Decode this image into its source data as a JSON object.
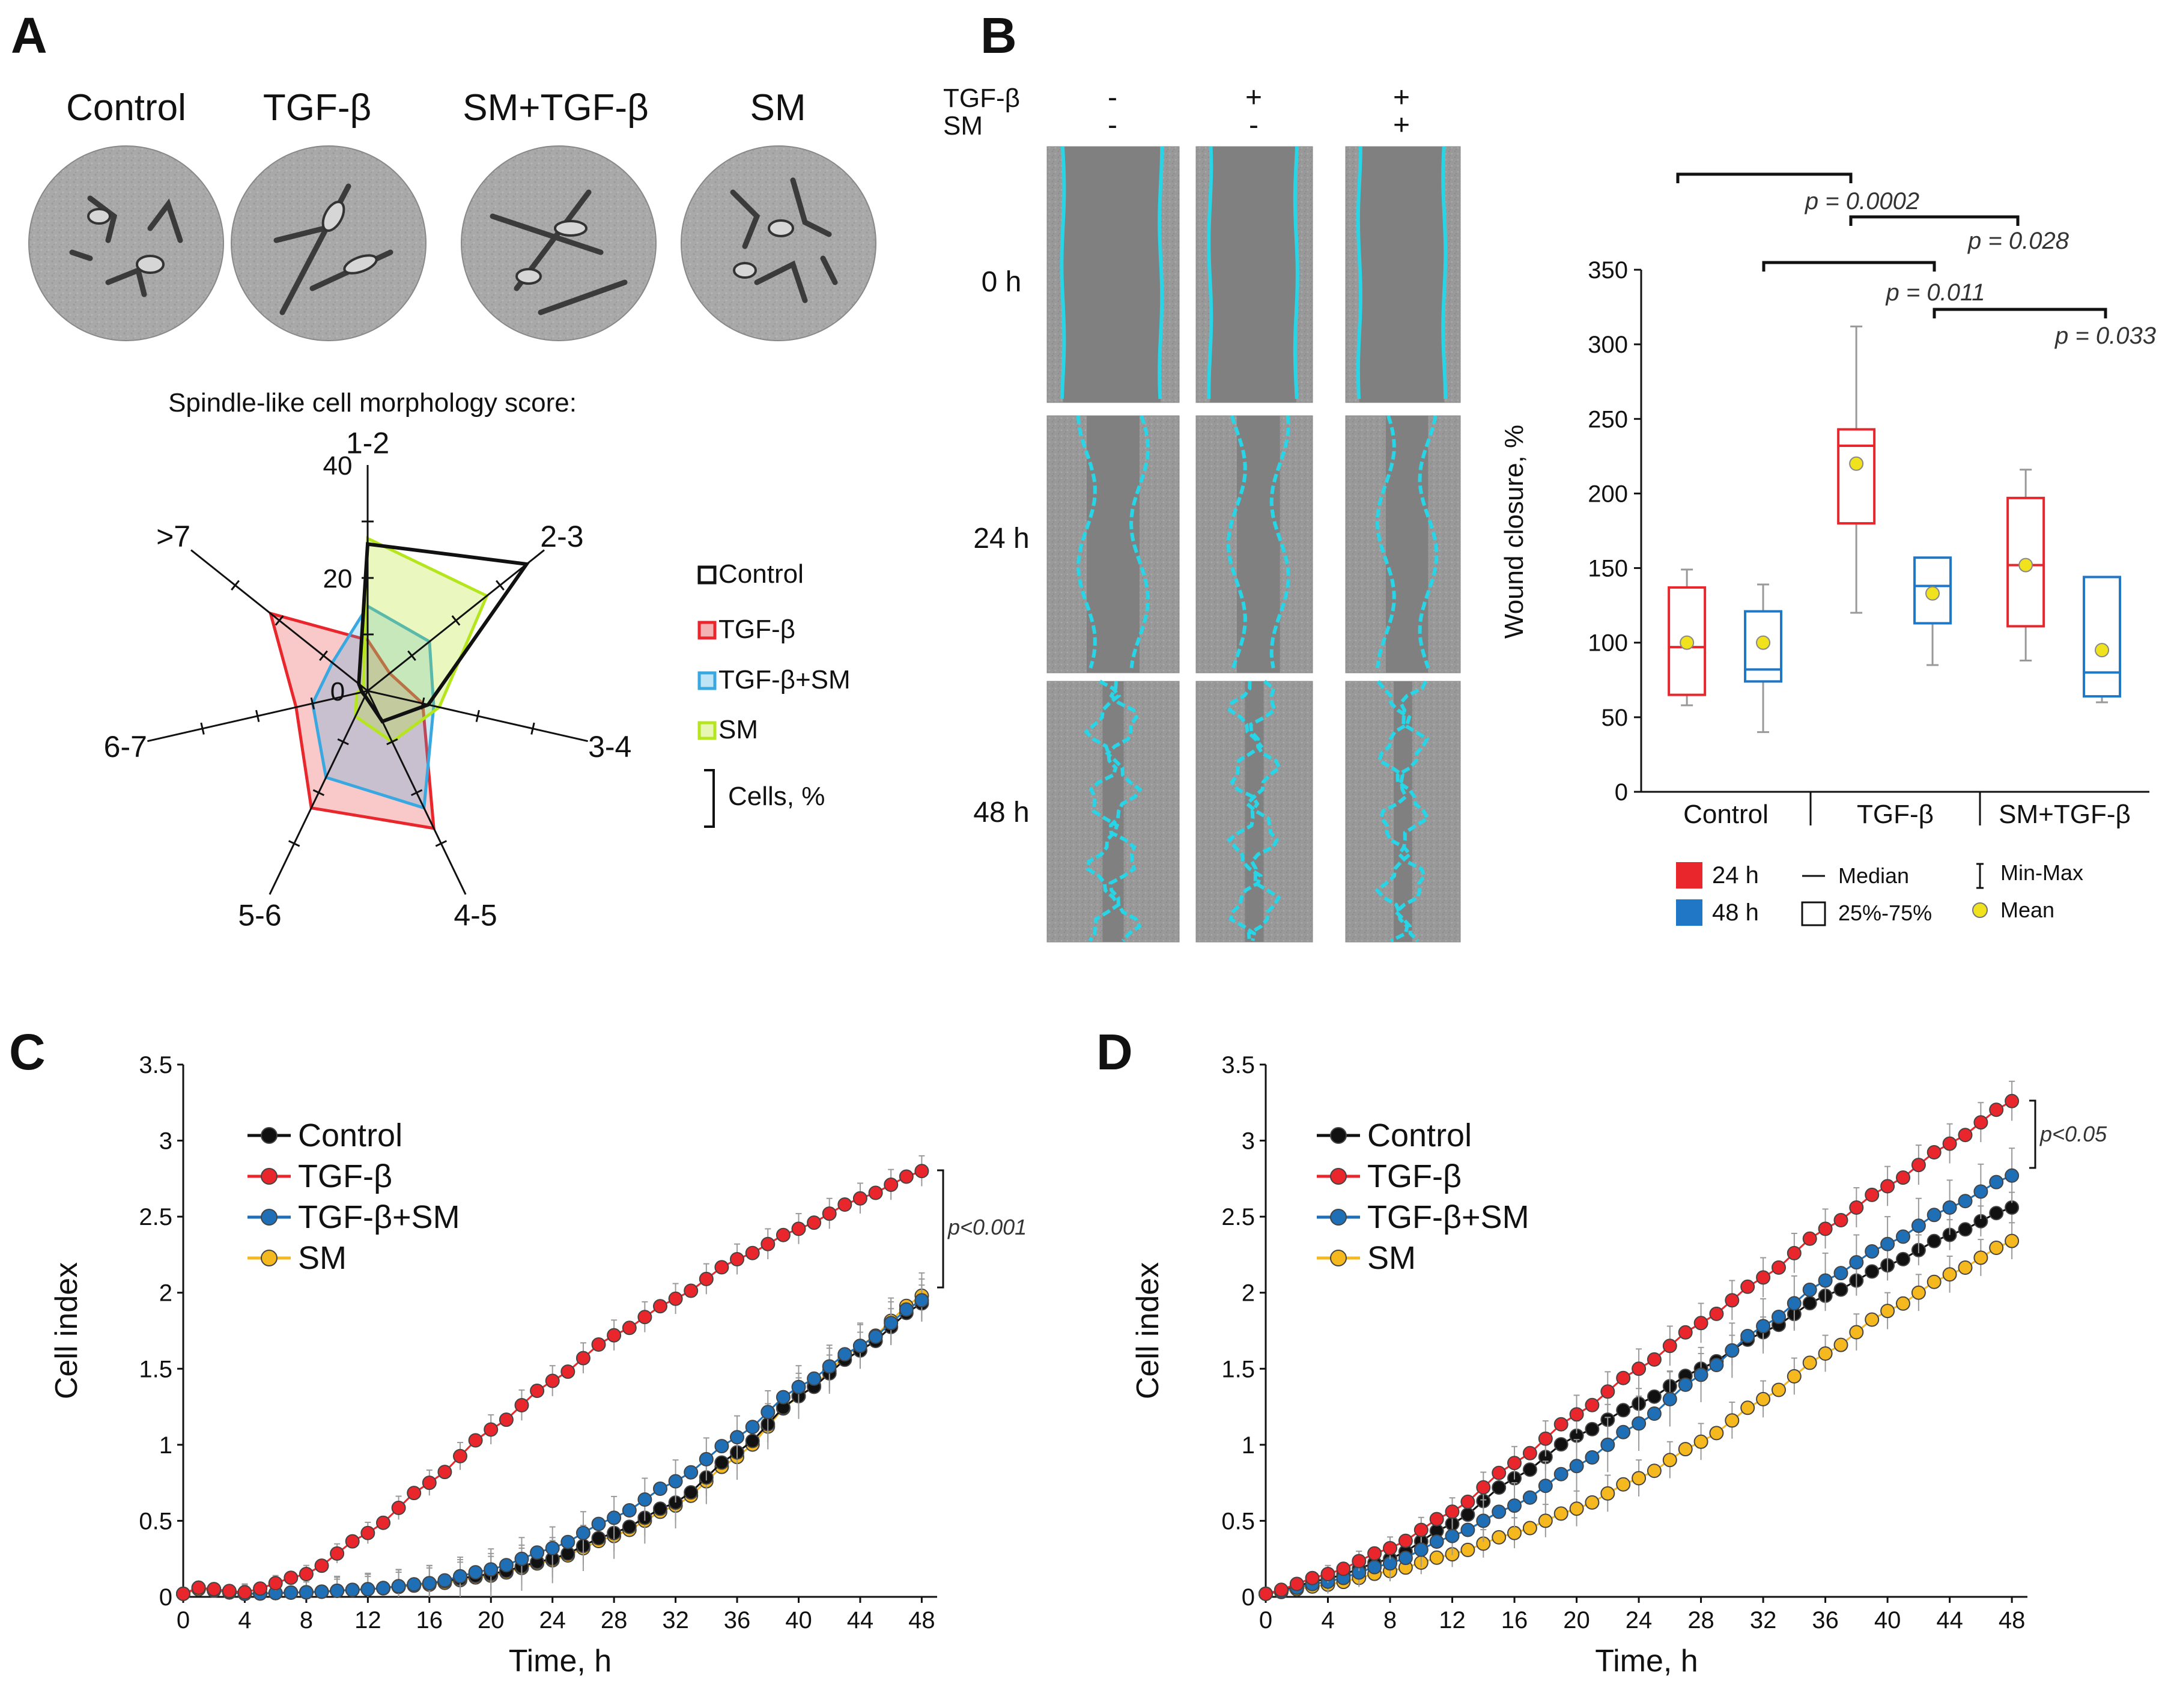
{
  "panels": {
    "A": {
      "letter": "A",
      "micrographs": [
        "Control",
        "TGF-β",
        "SM+TGF-β",
        "SM"
      ],
      "score_title": "Spindle-like cell morphology score:",
      "axis_ticks": [
        "0",
        "20",
        "40"
      ],
      "legend": {
        "items": [
          "Control",
          "TGF-β",
          "TGF-β+SM",
          "SM"
        ],
        "bracket_label": "Cells, %"
      }
    },
    "B": {
      "letter": "B",
      "treatment_rows": [
        {
          "label": "TGF-β",
          "marks": [
            "-",
            "+",
            "+"
          ]
        },
        {
          "label": "SM",
          "marks": [
            "-",
            "-",
            "+"
          ]
        }
      ],
      "time_labels": [
        "0 h",
        "24 h",
        "48 h"
      ],
      "pvalues": [
        "p = 0.0002",
        "p = 0.028",
        "p = 0.011",
        "p = 0.033"
      ],
      "legend": {
        "t24": "24 h",
        "t48": "48 h",
        "median": "Median",
        "iqr": "25%-75%",
        "minmax": "Min-Max",
        "mean": "Mean"
      }
    },
    "C": {
      "letter": "C",
      "pvalue": "p<0.001"
    },
    "D": {
      "letter": "D",
      "pvalue": "p<0.05"
    }
  },
  "colors": {
    "control": "#111111",
    "tgf": "#e8262b",
    "tgfsm": "#3aa8e0",
    "sm": "#b5e61d",
    "red": "#e8262b",
    "blue": "#1f77c6",
    "cyan": "#27d5e6",
    "mean": "#f1e21e",
    "yellow": "#f5b81f",
    "lineC": "#1f6fb7"
  },
  "chart_data": [
    {
      "id": "A-radar",
      "type": "radar",
      "title": "Spindle-like cell morphology score:",
      "axes": [
        "1-2",
        "2-3",
        "3-4",
        "4-5",
        "5-6",
        "6-7",
        ">7"
      ],
      "rmax": 40,
      "ticks": [
        0,
        20,
        40
      ],
      "series": [
        {
          "name": "Control",
          "values": [
            26,
            36,
            11,
            6,
            1,
            1,
            2
          ]
        },
        {
          "name": "TGF-β",
          "values": [
            9,
            5,
            10,
            27,
            23,
            13,
            22
          ]
        },
        {
          "name": "TGF-β+SM",
          "values": [
            15,
            14,
            12,
            23,
            17,
            10,
            8
          ]
        },
        {
          "name": "SM",
          "values": [
            27,
            27,
            13,
            10,
            5,
            2,
            1
          ]
        }
      ]
    },
    {
      "id": "B-box",
      "type": "box",
      "ylabel": "Wound closure, %",
      "ylim": [
        0,
        350
      ],
      "yticks": [
        0,
        50,
        100,
        150,
        200,
        250,
        300,
        350
      ],
      "categories": [
        "Control",
        "TGF-β",
        "SM+TGF-β"
      ],
      "series": [
        {
          "name": "24 h",
          "boxes": [
            {
              "min": 58,
              "q1": 65,
              "median": 97,
              "q3": 137,
              "max": 149,
              "mean": 100
            },
            {
              "min": 120,
              "q1": 180,
              "median": 232,
              "q3": 243,
              "max": 312,
              "mean": 220
            },
            {
              "min": 88,
              "q1": 111,
              "median": 152,
              "q3": 197,
              "max": 216,
              "mean": 152
            }
          ]
        },
        {
          "name": "48 h",
          "boxes": [
            {
              "min": 40,
              "q1": 74,
              "median": 82,
              "q3": 121,
              "max": 139,
              "mean": 100
            },
            {
              "min": 85,
              "q1": 113,
              "median": 138,
              "q3": 157,
              "max": 157,
              "mean": 133
            },
            {
              "min": 60,
              "q1": 64,
              "median": 80,
              "q3": 144,
              "max": 144,
              "mean": 95
            }
          ]
        }
      ]
    },
    {
      "id": "C",
      "type": "line",
      "xlabel": "Time, h",
      "ylabel": "Cell index",
      "xlim": [
        0,
        49
      ],
      "ylim": [
        0,
        3.5
      ],
      "xticks": [
        0,
        4,
        8,
        12,
        16,
        20,
        24,
        28,
        32,
        36,
        40,
        44,
        48
      ],
      "yticks": [
        0,
        0.5,
        1,
        1.5,
        2,
        2.5,
        3,
        3.5
      ],
      "series": [
        {
          "name": "Control",
          "x0": 0,
          "dx": 1,
          "n": 49,
          "knots": [
            [
              0,
              0.02
            ],
            [
              1,
              0.06
            ],
            [
              4,
              0.02
            ],
            [
              8,
              0.03
            ],
            [
              12,
              0.05
            ],
            [
              16,
              0.09
            ],
            [
              20,
              0.15
            ],
            [
              24,
              0.25
            ],
            [
              28,
              0.42
            ],
            [
              32,
              0.62
            ],
            [
              36,
              0.95
            ],
            [
              40,
              1.32
            ],
            [
              44,
              1.62
            ],
            [
              48,
              1.93
            ]
          ],
          "err": 0.12
        },
        {
          "name": "TGF-β",
          "x0": 0,
          "dx": 1,
          "n": 49,
          "knots": [
            [
              0,
              0.02
            ],
            [
              1,
              0.06
            ],
            [
              4,
              0.03
            ],
            [
              8,
              0.15
            ],
            [
              12,
              0.42
            ],
            [
              16,
              0.75
            ],
            [
              20,
              1.1
            ],
            [
              24,
              1.42
            ],
            [
              28,
              1.72
            ],
            [
              32,
              1.96
            ],
            [
              36,
              2.22
            ],
            [
              40,
              2.42
            ],
            [
              44,
              2.62
            ],
            [
              48,
              2.8
            ]
          ],
          "err": 0.1
        },
        {
          "name": "TGF-β+SM",
          "x0": 0,
          "dx": 1,
          "n": 49,
          "knots": [
            [
              0,
              0.02
            ],
            [
              1,
              0.06
            ],
            [
              4,
              0.02
            ],
            [
              8,
              0.03
            ],
            [
              12,
              0.05
            ],
            [
              16,
              0.09
            ],
            [
              20,
              0.18
            ],
            [
              24,
              0.32
            ],
            [
              28,
              0.52
            ],
            [
              32,
              0.76
            ],
            [
              36,
              1.05
            ],
            [
              40,
              1.38
            ],
            [
              44,
              1.65
            ],
            [
              48,
              1.95
            ]
          ],
          "err": 0.14
        },
        {
          "name": "SM",
          "x0": 0,
          "dx": 1,
          "n": 49,
          "knots": [
            [
              0,
              0.02
            ],
            [
              1,
              0.05
            ],
            [
              4,
              0.02
            ],
            [
              8,
              0.03
            ],
            [
              12,
              0.05
            ],
            [
              16,
              0.08
            ],
            [
              20,
              0.14
            ],
            [
              24,
              0.24
            ],
            [
              28,
              0.4
            ],
            [
              32,
              0.6
            ],
            [
              36,
              0.92
            ],
            [
              40,
              1.32
            ],
            [
              44,
              1.65
            ],
            [
              48,
              1.98
            ]
          ],
          "err": 0.15
        }
      ]
    },
    {
      "id": "D",
      "type": "line",
      "xlabel": "Time, h",
      "ylabel": "Cell index",
      "xlim": [
        0,
        49
      ],
      "ylim": [
        0,
        3.5
      ],
      "xticks": [
        0,
        4,
        8,
        12,
        16,
        20,
        24,
        28,
        32,
        36,
        40,
        44,
        48
      ],
      "yticks": [
        0,
        0.5,
        1,
        1.5,
        2,
        2.5,
        3,
        3.5
      ],
      "series": [
        {
          "name": "Control",
          "x0": 0,
          "dx": 1,
          "n": 49,
          "knots": [
            [
              0,
              0.02
            ],
            [
              4,
              0.12
            ],
            [
              8,
              0.25
            ],
            [
              12,
              0.48
            ],
            [
              16,
              0.78
            ],
            [
              20,
              1.06
            ],
            [
              24,
              1.27
            ],
            [
              28,
              1.5
            ],
            [
              32,
              1.74
            ],
            [
              36,
              1.98
            ],
            [
              40,
              2.18
            ],
            [
              44,
              2.38
            ],
            [
              48,
              2.56
            ]
          ],
          "err": 0.1
        },
        {
          "name": "TGF-β",
          "x0": 0,
          "dx": 1,
          "n": 49,
          "knots": [
            [
              0,
              0.02
            ],
            [
              4,
              0.15
            ],
            [
              8,
              0.32
            ],
            [
              12,
              0.56
            ],
            [
              16,
              0.88
            ],
            [
              20,
              1.2
            ],
            [
              24,
              1.5
            ],
            [
              28,
              1.8
            ],
            [
              32,
              2.1
            ],
            [
              36,
              2.42
            ],
            [
              40,
              2.7
            ],
            [
              44,
              2.98
            ],
            [
              48,
              3.26
            ]
          ],
          "err": 0.13
        },
        {
          "name": "TGF-β+SM",
          "x0": 0,
          "dx": 1,
          "n": 49,
          "knots": [
            [
              0,
              0.02
            ],
            [
              4,
              0.1
            ],
            [
              8,
              0.22
            ],
            [
              12,
              0.4
            ],
            [
              16,
              0.6
            ],
            [
              20,
              0.86
            ],
            [
              24,
              1.14
            ],
            [
              28,
              1.46
            ],
            [
              32,
              1.78
            ],
            [
              36,
              2.08
            ],
            [
              40,
              2.32
            ],
            [
              44,
              2.56
            ],
            [
              48,
              2.77
            ]
          ],
          "err": 0.18
        },
        {
          "name": "SM",
          "x0": 0,
          "dx": 1,
          "n": 49,
          "knots": [
            [
              0,
              0.02
            ],
            [
              4,
              0.08
            ],
            [
              8,
              0.17
            ],
            [
              12,
              0.28
            ],
            [
              16,
              0.42
            ],
            [
              20,
              0.58
            ],
            [
              24,
              0.78
            ],
            [
              28,
              1.02
            ],
            [
              32,
              1.3
            ],
            [
              36,
              1.6
            ],
            [
              40,
              1.88
            ],
            [
              44,
              2.12
            ],
            [
              48,
              2.34
            ]
          ],
          "err": 0.12
        }
      ]
    }
  ]
}
